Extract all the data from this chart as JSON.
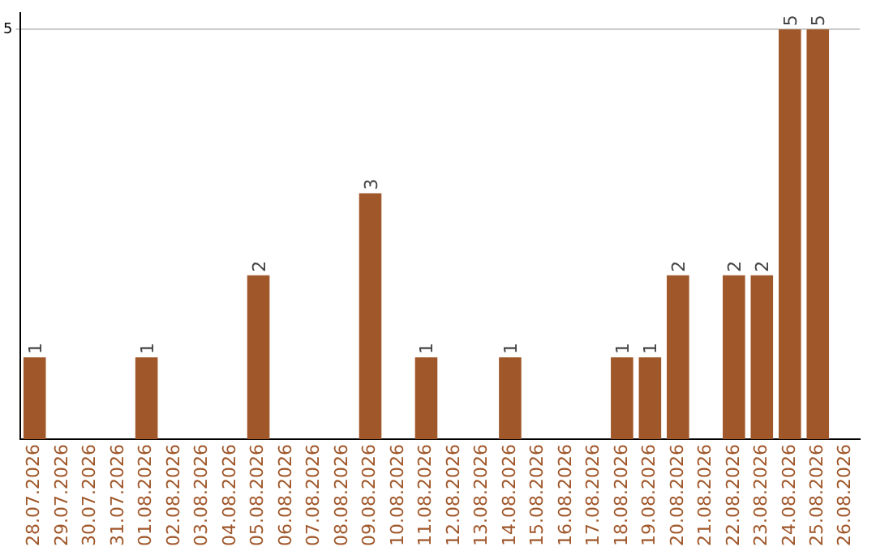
{
  "chart_data": {
    "type": "bar",
    "categories": [
      "28.07.2026",
      "29.07.2026",
      "30.07.2026",
      "31.07.2026",
      "01.08.2026",
      "02.08.2026",
      "03.08.2026",
      "04.08.2026",
      "05.08.2026",
      "06.08.2026",
      "07.08.2026",
      "08.08.2026",
      "09.08.2026",
      "10.08.2026",
      "11.08.2026",
      "12.08.2026",
      "13.08.2026",
      "14.08.2026",
      "15.08.2026",
      "16.08.2026",
      "17.08.2026",
      "18.08.2026",
      "19.08.2026",
      "20.08.2026",
      "21.08.2026",
      "22.08.2026",
      "23.08.2026",
      "24.08.2026",
      "25.08.2026",
      "26.08.2026"
    ],
    "values": [
      1,
      0,
      0,
      0,
      1,
      0,
      0,
      0,
      2,
      0,
      0,
      0,
      3,
      0,
      1,
      0,
      0,
      1,
      0,
      0,
      0,
      1,
      1,
      2,
      0,
      2,
      2,
      5,
      5,
      0
    ],
    "value_labels": [
      "1",
      null,
      null,
      null,
      "1",
      null,
      null,
      null,
      "2",
      null,
      null,
      null,
      "3",
      null,
      "1",
      null,
      null,
      "1",
      null,
      null,
      null,
      "1",
      "1",
      "2",
      null,
      "2",
      "2",
      "5",
      "5",
      null
    ],
    "color": "#a0572a",
    "ylim": [
      0,
      5.2
    ],
    "yticks": [
      5
    ],
    "grid": "y",
    "legend": false
  }
}
